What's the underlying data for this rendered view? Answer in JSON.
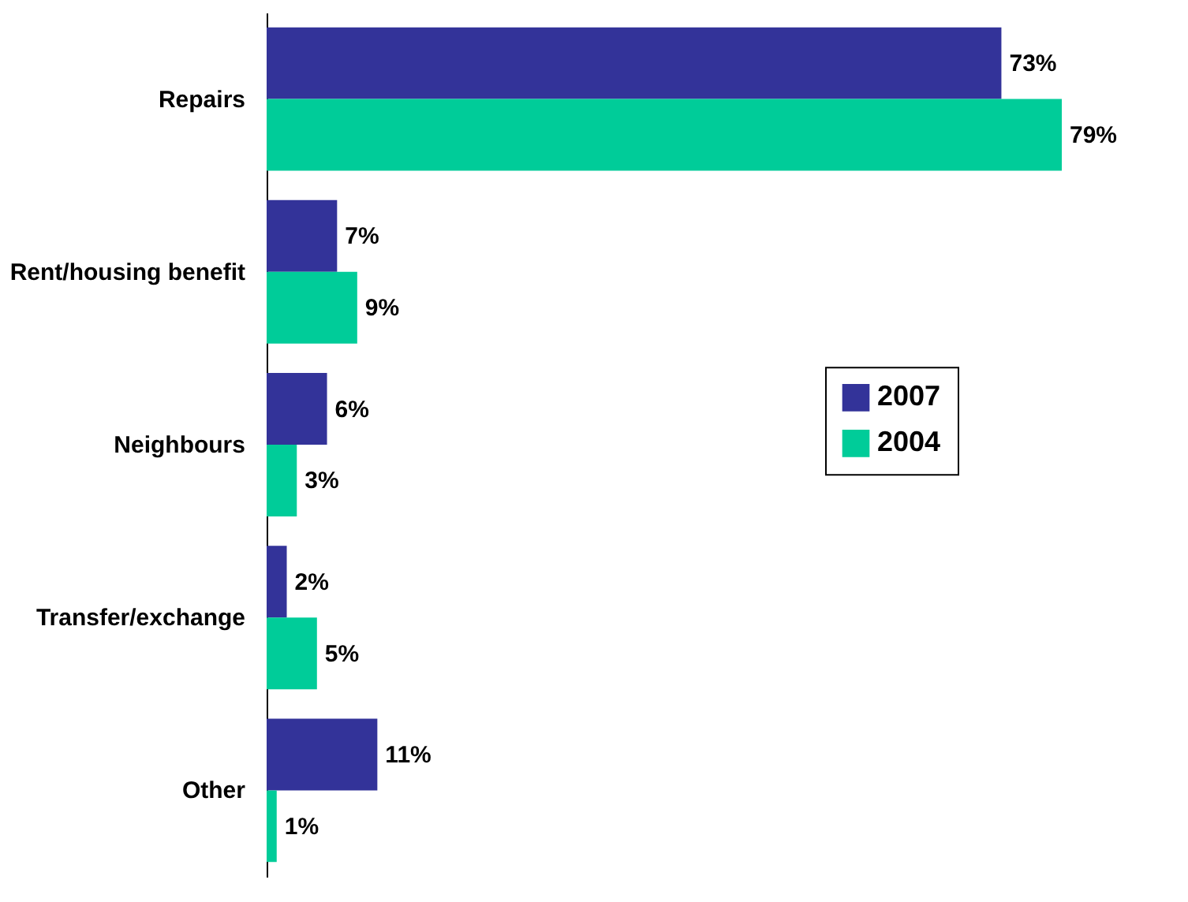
{
  "chart_data": {
    "type": "bar",
    "orientation": "horizontal",
    "categories": [
      "Repairs",
      "Rent/housing benefit",
      "Neighbours",
      "Transfer/exchange",
      "Other"
    ],
    "series": [
      {
        "name": "2007",
        "color": "#333399",
        "values": [
          73,
          7,
          6,
          2,
          11
        ],
        "value_labels": [
          "73%",
          "7%",
          "6%",
          "2%",
          "11%"
        ]
      },
      {
        "name": "2004",
        "color": "#00cc99",
        "values": [
          79,
          9,
          3,
          5,
          1
        ],
        "value_labels": [
          "79%",
          "9%",
          "3%",
          "5%",
          "1%"
        ]
      }
    ],
    "legend": "right",
    "grid": false
  }
}
